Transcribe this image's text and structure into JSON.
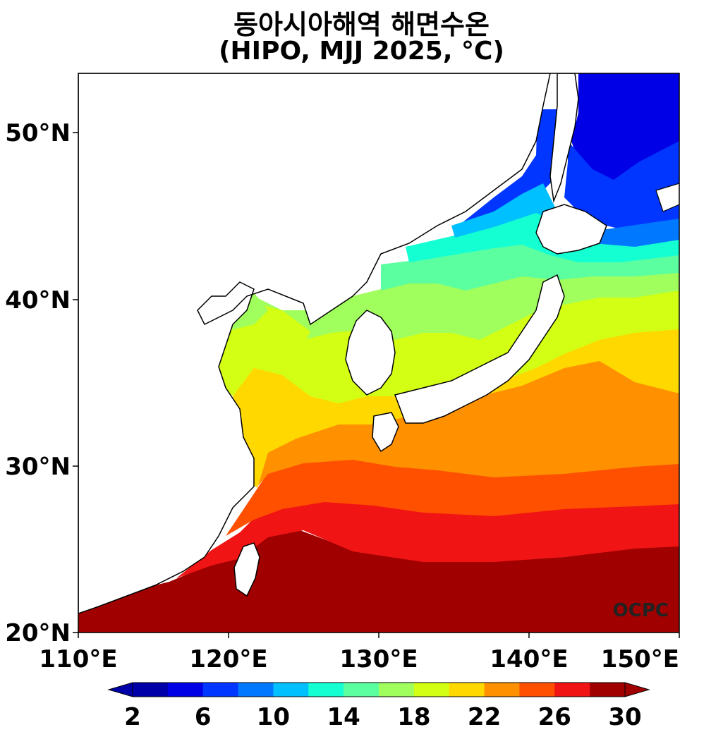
{
  "title": {
    "line1": "동아시아해역 해면수온",
    "line2": "(HIPO, MJJ 2025, °C)"
  },
  "map": {
    "lat_ticks": [
      "50°N",
      "40°N",
      "30°N",
      "20°N"
    ],
    "lon_ticks": [
      "110°E",
      "120°E",
      "130°E",
      "140°E",
      "150°E"
    ],
    "lat_range": [
      20,
      53.5
    ],
    "lon_range": [
      110,
      150
    ],
    "credit": "OCPC"
  },
  "colorbar": {
    "labels": [
      "2",
      "6",
      "10",
      "14",
      "18",
      "22",
      "26",
      "30"
    ],
    "colors": [
      "#0000a8",
      "#0000e6",
      "#0036ff",
      "#0078ff",
      "#00c0ff",
      "#14ffd2",
      "#5cffa0",
      "#a0ff5c",
      "#d2ff14",
      "#ffd800",
      "#ff9000",
      "#ff5000",
      "#f01414",
      "#a00000"
    ]
  }
}
